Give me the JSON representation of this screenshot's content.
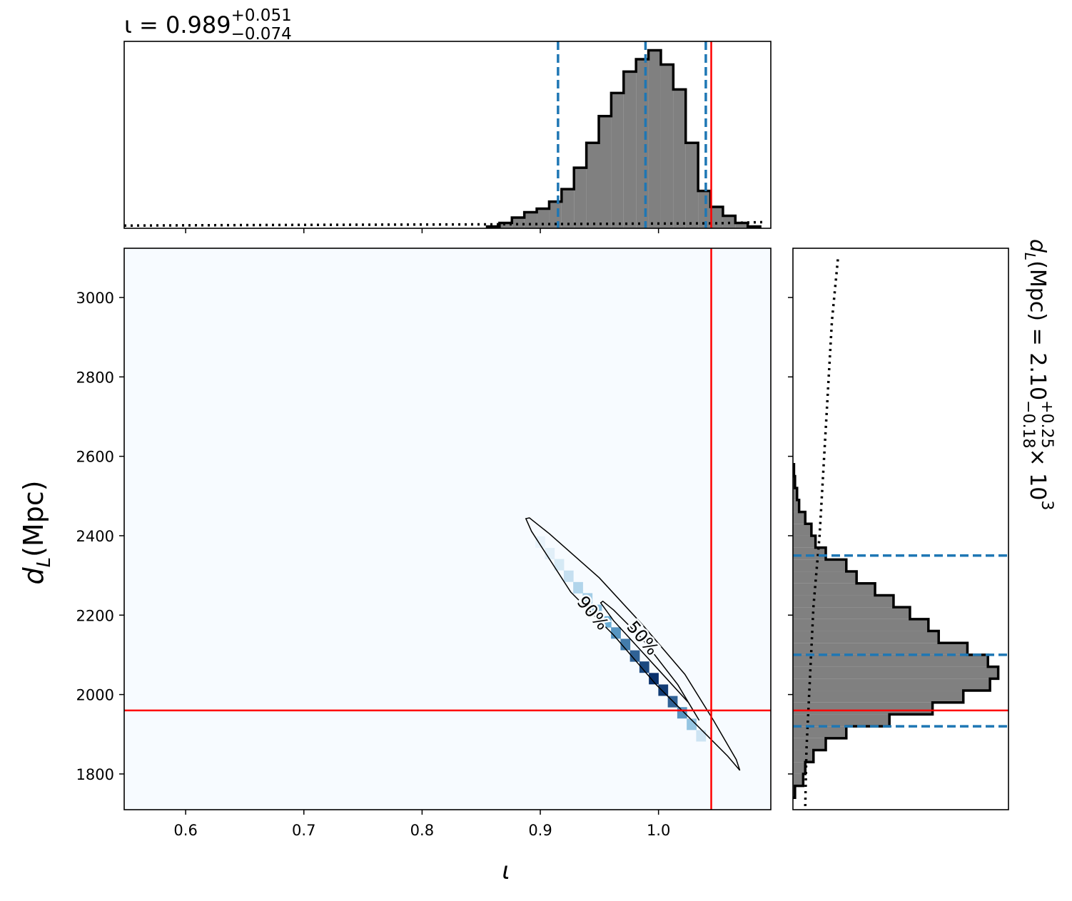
{
  "chart_data": [
    {
      "type": "histogram",
      "orientation": "vertical",
      "title": {
        "main": "ι = 0.989",
        "sup": "+0.051",
        "sub": "−0.074"
      },
      "bins": [
        0.855,
        0.8655,
        0.876,
        0.8865,
        0.897,
        0.9075,
        0.918,
        0.9285,
        0.939,
        0.9495,
        0.96,
        0.9705,
        0.981,
        0.9915,
        1.002,
        1.0125,
        1.023,
        1.0335,
        1.044,
        1.0545,
        1.065,
        1.0755,
        1.086
      ],
      "values": [
        0.01,
        0.03,
        0.06,
        0.09,
        0.11,
        0.15,
        0.22,
        0.34,
        0.48,
        0.63,
        0.76,
        0.88,
        0.95,
        1.0,
        0.92,
        0.78,
        0.48,
        0.21,
        0.12,
        0.07,
        0.03,
        0.01
      ],
      "ylim": [
        0,
        1.05
      ],
      "color": "#808080",
      "edgecolor": "#000000",
      "quantiles": [
        0.915,
        0.989,
        1.04
      ],
      "quantile_color": "#1f77b4",
      "prior": {
        "x": [
          0.548,
          0.65,
          0.75,
          0.85,
          0.95,
          1.05,
          1.09
        ],
        "values": [
          0.015,
          0.018,
          0.02,
          0.022,
          0.025,
          0.028,
          0.035
        ]
      }
    },
    {
      "type": "density2d",
      "xlabel": "ι",
      "ylabel": {
        "main": "d",
        "sub": "L",
        "tail": " (Mpc)"
      },
      "xlim": [
        0.548,
        1.095
      ],
      "ylim": [
        1710,
        3124
      ],
      "xticks": [
        0.6,
        0.7,
        0.8,
        0.9,
        {
          "value": 1,
          "label": "1.0"
        }
      ],
      "yticks": [
        1800,
        2000,
        2200,
        2400,
        2600,
        2800,
        3000
      ],
      "colormap": [
        "#f7fbff",
        "#6baed6",
        "#08306b"
      ],
      "density": {
        "x": [
          0.9,
          0.908,
          0.916,
          0.924,
          0.932,
          0.94,
          0.948,
          0.956,
          0.964,
          0.972,
          0.98,
          0.988,
          0.996,
          1.004,
          1.012,
          1.02,
          1.028,
          1.036
        ],
        "y": [
          2384,
          2355,
          2327,
          2298,
          2269,
          2241,
          2212,
          2183,
          2155,
          2126,
          2097,
          2069,
          2040,
          2011,
          1982,
          1954,
          1925,
          1896
        ],
        "values": [
          0.05,
          0.08,
          0.12,
          0.18,
          0.25,
          0.3,
          0.4,
          0.5,
          0.6,
          0.7,
          0.8,
          0.9,
          1.0,
          0.95,
          0.8,
          0.6,
          0.35,
          0.15
        ]
      },
      "contours": [
        {
          "label": "90%",
          "x": [
            0.8878,
            0.8926,
            0.9258,
            0.962,
            0.998,
            1.0344,
            1.0585,
            1.0688,
            1.0658,
            1.0465,
            1.0223,
            0.9861,
            0.9499,
            0.9077,
            0.8908
          ],
          "y": [
            2443,
            2411,
            2258,
            2150,
            2025,
            1917,
            1845,
            1809,
            1836,
            1935,
            2051,
            2177,
            2294,
            2405,
            2445
          ]
        },
        {
          "label": "50%",
          "x": [
            0.9511,
            0.962,
            0.998,
            1.0253,
            1.0344,
            1.0163,
            0.9861,
            0.962,
            0.9529
          ],
          "y": [
            2231,
            2186,
            2069,
            1980,
            1935,
            2025,
            2141,
            2213,
            2235
          ]
        }
      ],
      "truth": {
        "x": 1.0446,
        "y": 1960
      },
      "truth_color": "#ff0000"
    },
    {
      "type": "histogram",
      "orientation": "horizontal",
      "title": {
        "main": "d",
        "sub": "L",
        "mid": " (Mpc) = 2.10",
        "sup": "+0.25",
        "sub2": "−0.18",
        "tail": " × 10",
        "exp": "3"
      },
      "bins": [
        1740,
        1770,
        1800,
        1830,
        1860,
        1890,
        1920,
        1950,
        1980,
        2010,
        2040,
        2070,
        2100,
        2130,
        2160,
        2190,
        2220,
        2250,
        2280,
        2310,
        2340,
        2370,
        2400,
        2430,
        2460,
        2490,
        2520,
        2550,
        2580
      ],
      "values": [
        0.01,
        0.05,
        0.06,
        0.1,
        0.16,
        0.26,
        0.47,
        0.68,
        0.83,
        0.96,
        1.0,
        0.95,
        0.85,
        0.71,
        0.66,
        0.57,
        0.49,
        0.4,
        0.31,
        0.26,
        0.16,
        0.11,
        0.09,
        0.06,
        0.03,
        0.02,
        0.01,
        0.005
      ],
      "xlim": [
        0,
        1.05
      ],
      "color": "#808080",
      "edgecolor": "#000000",
      "quantiles": [
        1920,
        2100,
        2350
      ],
      "quantile_color": "#1f77b4",
      "prior": {
        "y": [
          1719,
          1863,
          2042,
          2222,
          2402,
          2581,
          2761,
          2941,
          3102
        ],
        "values": [
          0.06,
          0.066,
          0.083,
          0.1,
          0.13,
          0.15,
          0.17,
          0.19,
          0.22
        ]
      }
    }
  ]
}
